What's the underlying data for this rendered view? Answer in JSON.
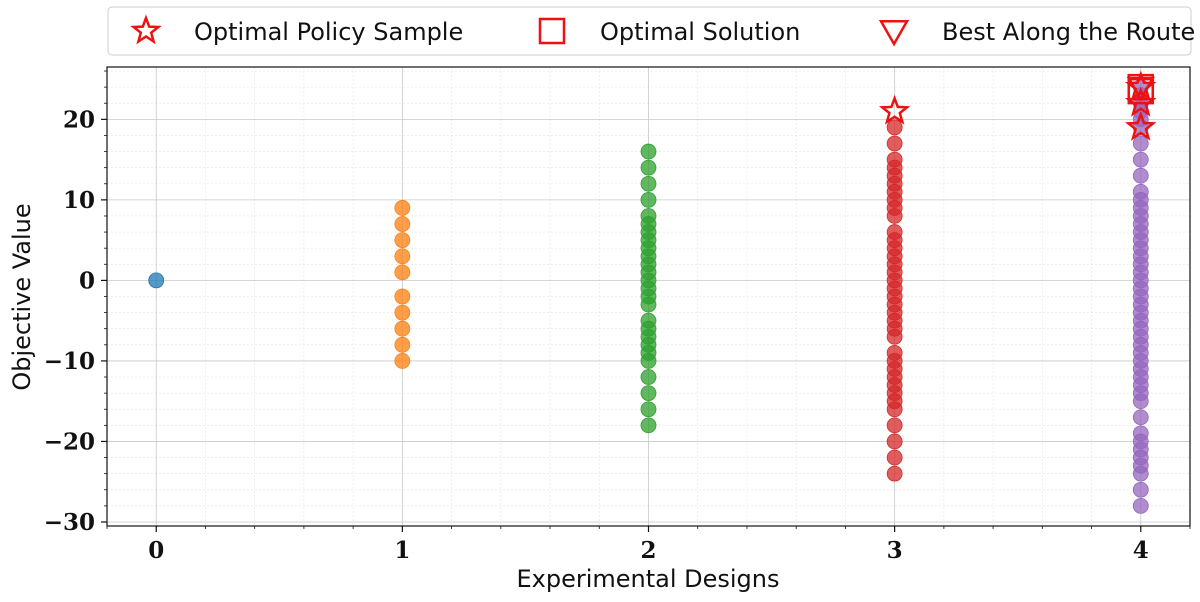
{
  "chart_data": {
    "type": "scatter",
    "xlabel": "Experimental Designs",
    "ylabel": "Objective Value",
    "xlim": [
      -0.2,
      4.2
    ],
    "ylim": [
      -30.5,
      26.5
    ],
    "x_ticks": [
      0,
      1,
      2,
      3,
      4
    ],
    "x_tick_labels": [
      "0",
      "1",
      "2",
      "3",
      "4"
    ],
    "y_ticks": [
      -30,
      -20,
      -10,
      0,
      10,
      20
    ],
    "y_tick_labels": [
      "−30",
      "−20",
      "−10",
      "0",
      "10",
      "20"
    ],
    "grid": "major and minor",
    "legend_position": "top, above plot",
    "legend": [
      {
        "label": "Optimal Policy Sample",
        "marker": "star",
        "color": "#ee1111"
      },
      {
        "label": "Optimal Solution",
        "marker": "square",
        "color": "#ee1111"
      },
      {
        "label": "Best Along the Route",
        "marker": "triangle-down",
        "color": "#ee1111"
      }
    ],
    "series": [
      {
        "name": "design 0",
        "x": 0,
        "color": "#1f77b4",
        "values": [
          0
        ]
      },
      {
        "name": "design 1",
        "x": 1,
        "color": "#ff7f0e",
        "values": [
          9,
          7,
          5,
          3,
          1,
          -2,
          -4,
          -6,
          -8,
          -10
        ]
      },
      {
        "name": "design 2",
        "x": 2,
        "color": "#2ca02c",
        "values": [
          16,
          14,
          12,
          10,
          8,
          7,
          6,
          5,
          4,
          3,
          2,
          1,
          0,
          -1,
          -2,
          -3,
          -5,
          -6,
          -7,
          -8,
          -9,
          -10,
          -12,
          -14,
          -16,
          -18
        ]
      },
      {
        "name": "design 3",
        "x": 3,
        "color": "#d62728",
        "values": [
          19,
          17,
          15,
          14,
          13,
          12,
          11,
          10,
          9,
          8,
          6,
          5,
          4,
          3,
          2,
          1,
          0,
          -1,
          -2,
          -3,
          -4,
          -5,
          -6,
          -7,
          -9,
          -10,
          -11,
          -12,
          -13,
          -14,
          -15,
          -16,
          -18,
          -20,
          -22,
          -24
        ]
      },
      {
        "name": "design 4",
        "x": 4,
        "color": "#9467bd",
        "values": [
          24,
          23,
          22,
          21,
          20,
          19,
          17,
          15,
          13,
          11,
          10,
          9,
          8,
          7,
          6,
          5,
          4,
          3,
          2,
          1,
          0,
          -1,
          -2,
          -3,
          -4,
          -5,
          -6,
          -7,
          -8,
          -9,
          -10,
          -11,
          -12,
          -13,
          -14,
          -15,
          -17,
          -19,
          -20,
          -21,
          -22,
          -23,
          -24,
          -26,
          -28
        ]
      }
    ],
    "highlights": [
      {
        "marker": "star",
        "x": 3,
        "y": 21
      },
      {
        "marker": "star",
        "x": 4,
        "y": 24
      },
      {
        "marker": "star",
        "x": 4,
        "y": 22
      },
      {
        "marker": "star",
        "x": 4,
        "y": 19
      },
      {
        "marker": "square",
        "x": 4,
        "y": 24
      },
      {
        "marker": "square",
        "x": 4,
        "y": 23.5
      },
      {
        "marker": "triangle-down",
        "x": 4,
        "y": 24
      }
    ]
  }
}
